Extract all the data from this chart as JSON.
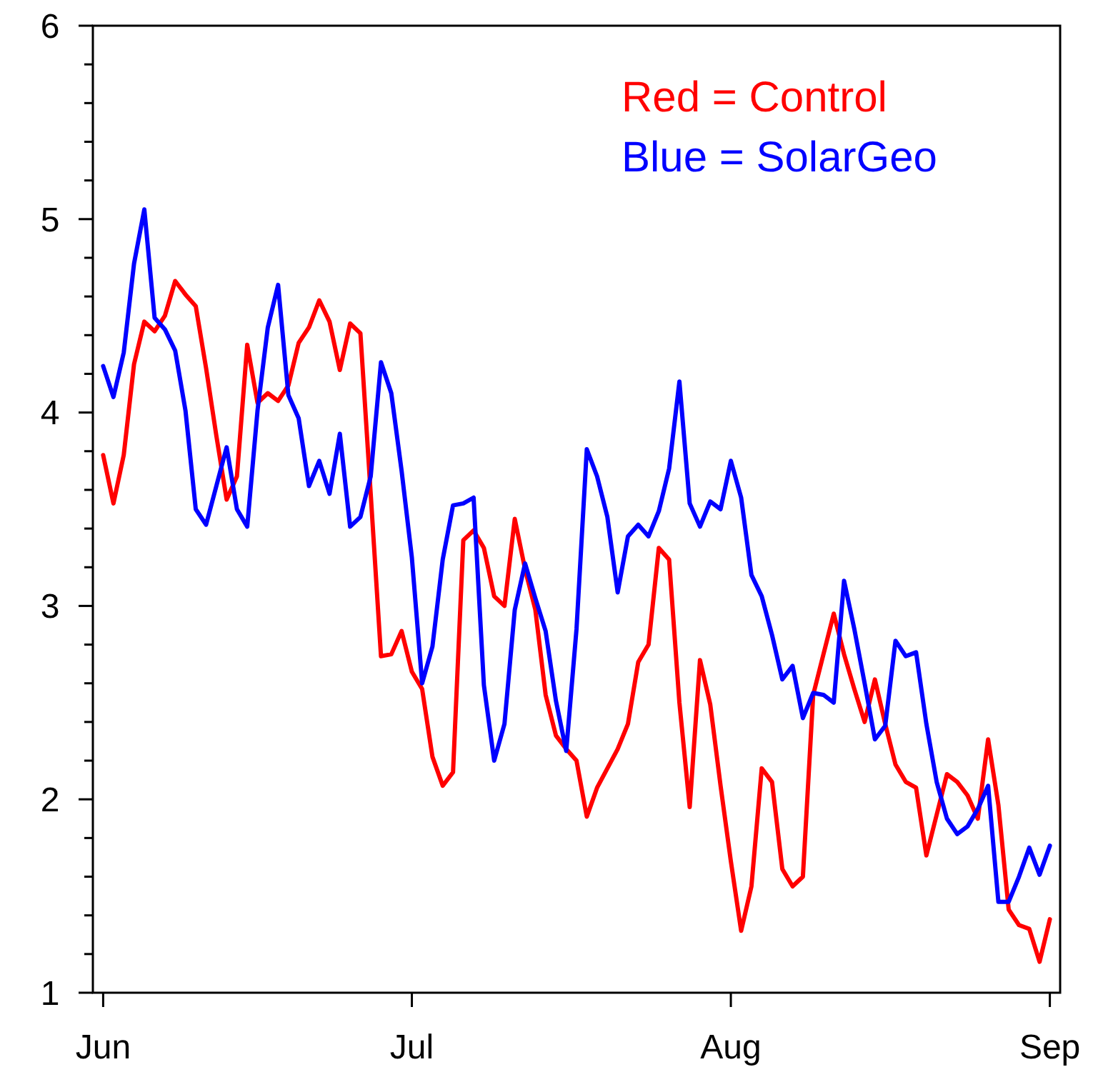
{
  "chart_data": {
    "type": "line",
    "x": [
      "--06-01",
      "--06-02",
      "--06-03",
      "--06-04",
      "--06-05",
      "--06-06",
      "--06-07",
      "--06-08",
      "--06-09",
      "--06-10",
      "--06-11",
      "--06-12",
      "--06-13",
      "--06-14",
      "--06-15",
      "--06-16",
      "--06-17",
      "--06-18",
      "--06-19",
      "--06-20",
      "--06-21",
      "--06-22",
      "--06-23",
      "--06-24",
      "--06-25",
      "--06-26",
      "--06-27",
      "--06-28",
      "--06-29",
      "--06-30",
      "--07-01",
      "--07-02",
      "--07-03",
      "--07-04",
      "--07-05",
      "--07-06",
      "--07-07",
      "--07-08",
      "--07-09",
      "--07-10",
      "--07-11",
      "--07-12",
      "--07-13",
      "--07-14",
      "--07-15",
      "--07-16",
      "--07-17",
      "--07-18",
      "--07-19",
      "--07-20",
      "--07-21",
      "--07-22",
      "--07-23",
      "--07-24",
      "--07-25",
      "--07-26",
      "--07-27",
      "--07-28",
      "--07-29",
      "--07-30",
      "--07-31",
      "--08-01",
      "--08-02",
      "--08-03",
      "--08-04",
      "--08-05",
      "--08-06",
      "--08-07",
      "--08-08",
      "--08-09",
      "--08-10",
      "--08-11",
      "--08-12",
      "--08-13",
      "--08-14",
      "--08-15",
      "--08-16",
      "--08-17",
      "--08-18",
      "--08-19",
      "--08-20",
      "--08-21",
      "--08-22",
      "--08-23",
      "--08-24",
      "--08-25",
      "--08-26",
      "--08-27",
      "--08-28",
      "--08-29",
      "--08-30",
      "--08-31",
      "--09-01"
    ],
    "series": [
      {
        "name": "Red = Control",
        "color": "#ff0000",
        "values": [
          3.78,
          3.53,
          3.78,
          4.25,
          4.47,
          4.42,
          4.5,
          4.68,
          4.61,
          4.55,
          4.23,
          3.88,
          3.55,
          3.67,
          4.35,
          4.05,
          4.1,
          4.06,
          4.14,
          4.36,
          4.44,
          4.58,
          4.47,
          4.22,
          4.46,
          4.41,
          3.58,
          2.74,
          2.75,
          2.87,
          2.66,
          2.57,
          2.22,
          2.07,
          2.14,
          3.34,
          3.39,
          3.3,
          3.05,
          3.0,
          3.45,
          3.19,
          2.98,
          2.54,
          2.33,
          2.26,
          2.2,
          1.91,
          2.06,
          2.16,
          2.26,
          2.39,
          2.71,
          2.8,
          3.3,
          3.24,
          2.5,
          1.96,
          2.72,
          2.49,
          2.07,
          1.68,
          1.32,
          1.55,
          2.16,
          2.09,
          1.64,
          1.55,
          1.6,
          2.54,
          2.75,
          2.96,
          2.75,
          2.57,
          2.4,
          2.62,
          2.39,
          2.18,
          2.09,
          2.06,
          1.71,
          1.92,
          2.13,
          2.09,
          2.02,
          1.9,
          2.31,
          1.97,
          1.43,
          1.35,
          1.33,
          1.16,
          1.38
        ]
      },
      {
        "name": "Blue = SolarGeo",
        "color": "#0000ff",
        "values": [
          4.24,
          4.08,
          4.31,
          4.77,
          5.05,
          4.49,
          4.43,
          4.32,
          4.01,
          3.5,
          3.42,
          3.62,
          3.82,
          3.5,
          3.41,
          4.01,
          4.44,
          4.66,
          4.09,
          3.97,
          3.62,
          3.75,
          3.58,
          3.89,
          3.41,
          3.46,
          3.67,
          4.26,
          4.1,
          3.7,
          3.25,
          2.6,
          2.79,
          3.24,
          3.52,
          3.53,
          3.56,
          2.59,
          2.2,
          2.39,
          2.98,
          3.22,
          3.04,
          2.87,
          2.51,
          2.25,
          2.88,
          3.81,
          3.67,
          3.46,
          3.07,
          3.36,
          3.42,
          3.36,
          3.49,
          3.71,
          4.16,
          3.53,
          3.41,
          3.54,
          3.5,
          3.75,
          3.56,
          3.16,
          3.05,
          2.85,
          2.62,
          2.69,
          2.42,
          2.55,
          2.54,
          2.5,
          3.13,
          2.88,
          2.6,
          2.31,
          2.38,
          2.82,
          2.74,
          2.76,
          2.39,
          2.09,
          1.9,
          1.82,
          1.86,
          1.95,
          2.07,
          1.47,
          1.47,
          1.6,
          1.75,
          1.61,
          1.76
        ]
      }
    ],
    "xlim": [
      "--05-31",
      "--09-02"
    ],
    "xticks": [
      {
        "value": "--06-01",
        "label": "Jun"
      },
      {
        "value": "--07-01",
        "label": "Jul"
      },
      {
        "value": "--08-01",
        "label": "Aug"
      },
      {
        "value": "--09-01",
        "label": "Sep"
      }
    ],
    "ylim": [
      1,
      6
    ],
    "yticks": [
      1,
      {
        "value": 1.2,
        "label": null
      },
      {
        "value": 1.4,
        "label": null
      },
      {
        "value": 1.6,
        "label": null
      },
      {
        "value": 1.8,
        "label": null
      },
      2,
      {
        "value": 2.2,
        "label": null
      },
      {
        "value": 2.4,
        "label": null
      },
      {
        "value": 2.6,
        "label": null
      },
      {
        "value": 2.8,
        "label": null
      },
      3,
      {
        "value": 3.2,
        "label": null
      },
      {
        "value": 3.4,
        "label": null
      },
      {
        "value": 3.6,
        "label": null
      },
      {
        "value": 3.8,
        "label": null
      },
      4,
      {
        "value": 4.2,
        "label": null
      },
      {
        "value": 4.4,
        "label": null
      },
      {
        "value": 4.6,
        "label": null
      },
      {
        "value": 4.8,
        "label": null
      },
      5,
      {
        "value": 5.2,
        "label": null
      },
      {
        "value": 5.4,
        "label": null
      },
      {
        "value": 5.6,
        "label": null
      },
      {
        "value": 5.8,
        "label": null
      },
      6
    ],
    "legend": "top right",
    "line_style": "solid",
    "marker": "none"
  }
}
